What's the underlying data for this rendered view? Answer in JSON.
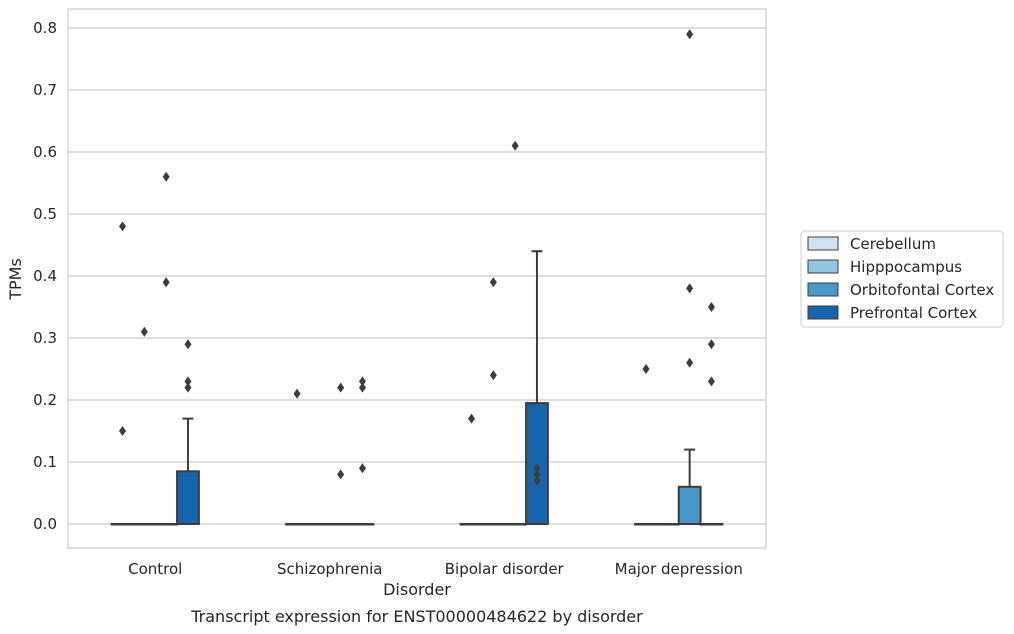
{
  "chart_data": {
    "type": "box",
    "xlabel": "Disorder",
    "ylabel": "TPMs",
    "caption": "Transcript expression for ENST00000484622 by disorder",
    "ylim": [
      -0.04,
      0.83
    ],
    "yticks": [
      "0.0",
      "0.1",
      "0.2",
      "0.3",
      "0.4",
      "0.5",
      "0.6",
      "0.7",
      "0.8"
    ],
    "grid": "horizontal",
    "legend_position": "right",
    "categories": [
      "Control",
      "Schizophrenia",
      "Bipolar disorder",
      "Major depression"
    ],
    "series": [
      {
        "name": "Cerebellum",
        "color": "#d0e1f2",
        "boxes": [
          {
            "q1": 0,
            "median": 0,
            "q3": 0,
            "whisker_low": 0,
            "whisker_high": 0,
            "outliers": [
              0.15,
              0.48
            ]
          },
          {
            "q1": 0,
            "median": 0,
            "q3": 0,
            "whisker_low": 0,
            "whisker_high": 0,
            "outliers": [
              0.21
            ]
          },
          {
            "q1": 0,
            "median": 0,
            "q3": 0,
            "whisker_low": 0,
            "whisker_high": 0,
            "outliers": [
              0.17
            ]
          },
          {
            "q1": 0,
            "median": 0,
            "q3": 0,
            "whisker_low": 0,
            "whisker_high": 0,
            "outliers": [
              0.25
            ]
          }
        ]
      },
      {
        "name": "Hipppocampus",
        "color": "#94c4df",
        "boxes": [
          {
            "q1": 0,
            "median": 0,
            "q3": 0,
            "whisker_low": 0,
            "whisker_high": 0,
            "outliers": [
              0.31
            ]
          },
          {
            "q1": 0,
            "median": 0,
            "q3": 0,
            "whisker_low": 0,
            "whisker_high": 0,
            "outliers": []
          },
          {
            "q1": 0,
            "median": 0,
            "q3": 0,
            "whisker_low": 0,
            "whisker_high": 0,
            "outliers": [
              0.24,
              0.39
            ]
          },
          {
            "q1": 0,
            "median": 0,
            "q3": 0,
            "whisker_low": 0,
            "whisker_high": 0,
            "outliers": []
          }
        ]
      },
      {
        "name": "Orbitofontal Cortex",
        "color": "#4a98c9",
        "boxes": [
          {
            "q1": 0,
            "median": 0,
            "q3": 0,
            "whisker_low": 0,
            "whisker_high": 0,
            "outliers": [
              0.39,
              0.56
            ]
          },
          {
            "q1": 0,
            "median": 0,
            "q3": 0,
            "whisker_low": 0,
            "whisker_high": 0,
            "outliers": [
              0.08,
              0.22
            ]
          },
          {
            "q1": 0,
            "median": 0,
            "q3": 0,
            "whisker_low": 0,
            "whisker_high": 0,
            "outliers": [
              0.61
            ]
          },
          {
            "q1": 0,
            "median": 0,
            "q3": 0.06,
            "whisker_low": 0,
            "whisker_high": 0.12,
            "outliers": [
              0.26,
              0.38,
              0.79
            ]
          }
        ]
      },
      {
        "name": "Prefrontal Cortex",
        "color": "#1764ab",
        "boxes": [
          {
            "q1": 0,
            "median": 0,
            "q3": 0.085,
            "whisker_low": 0,
            "whisker_high": 0.17,
            "outliers": [
              0.22,
              0.23,
              0.29
            ]
          },
          {
            "q1": 0,
            "median": 0,
            "q3": 0,
            "whisker_low": 0,
            "whisker_high": 0,
            "outliers": [
              0.09,
              0.22,
              0.23
            ]
          },
          {
            "q1": 0,
            "median": 0,
            "q3": 0.195,
            "whisker_low": 0,
            "whisker_high": 0.44,
            "outliers": [
              0.07,
              0.08,
              0.09
            ]
          },
          {
            "q1": 0,
            "median": 0,
            "q3": 0,
            "whisker_low": 0,
            "whisker_high": 0,
            "outliers": [
              0.23,
              0.29,
              0.35
            ]
          }
        ]
      }
    ]
  }
}
